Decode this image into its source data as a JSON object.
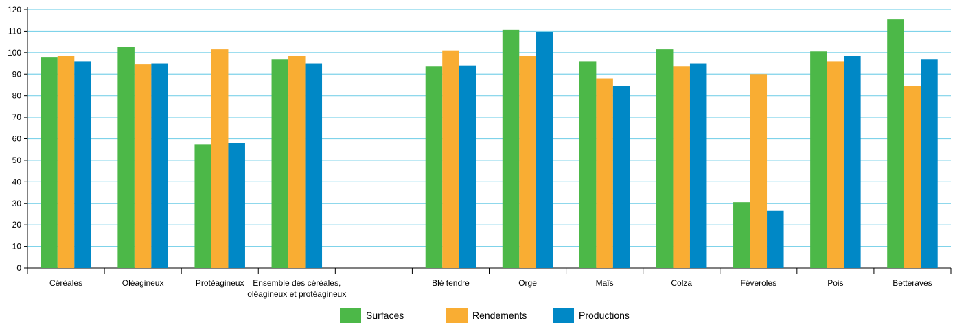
{
  "chart_data": {
    "type": "bar",
    "title": "",
    "xlabel": "",
    "ylabel": "",
    "ylim": [
      0,
      120
    ],
    "yticks": [
      0,
      10,
      20,
      30,
      40,
      50,
      60,
      70,
      80,
      90,
      100,
      110,
      120
    ],
    "grid": true,
    "legend_position": "bottom-center",
    "categories": [
      [
        "Céréales"
      ],
      [
        "Oléagineux"
      ],
      [
        "Protéagineux"
      ],
      [
        "Ensemble des céréales,",
        "oléagineux et protéagineux"
      ],
      [
        ""
      ],
      [
        "Blé tendre"
      ],
      [
        "Orge"
      ],
      [
        "Maïs"
      ],
      [
        "Colza"
      ],
      [
        "Féveroles"
      ],
      [
        "Pois"
      ],
      [
        "Betteraves"
      ]
    ],
    "series": [
      {
        "name": "Surfaces",
        "color": "#4cb848",
        "values": [
          98,
          102.5,
          57.5,
          97,
          null,
          93.5,
          110.5,
          96,
          101.5,
          30.5,
          100.5,
          115.5
        ]
      },
      {
        "name": "Rendements",
        "color": "#f9ad33",
        "values": [
          98.5,
          94.5,
          101.5,
          98.5,
          null,
          101,
          98.5,
          88,
          93.5,
          90,
          96,
          84.5
        ]
      },
      {
        "name": "Productions",
        "color": "#0088c6",
        "values": [
          96,
          95,
          58,
          95,
          null,
          94,
          109.5,
          84.5,
          95,
          26.5,
          98.5,
          97
        ]
      }
    ],
    "colors": {
      "grid": "#7fd3ea",
      "axis": "#000000"
    }
  }
}
